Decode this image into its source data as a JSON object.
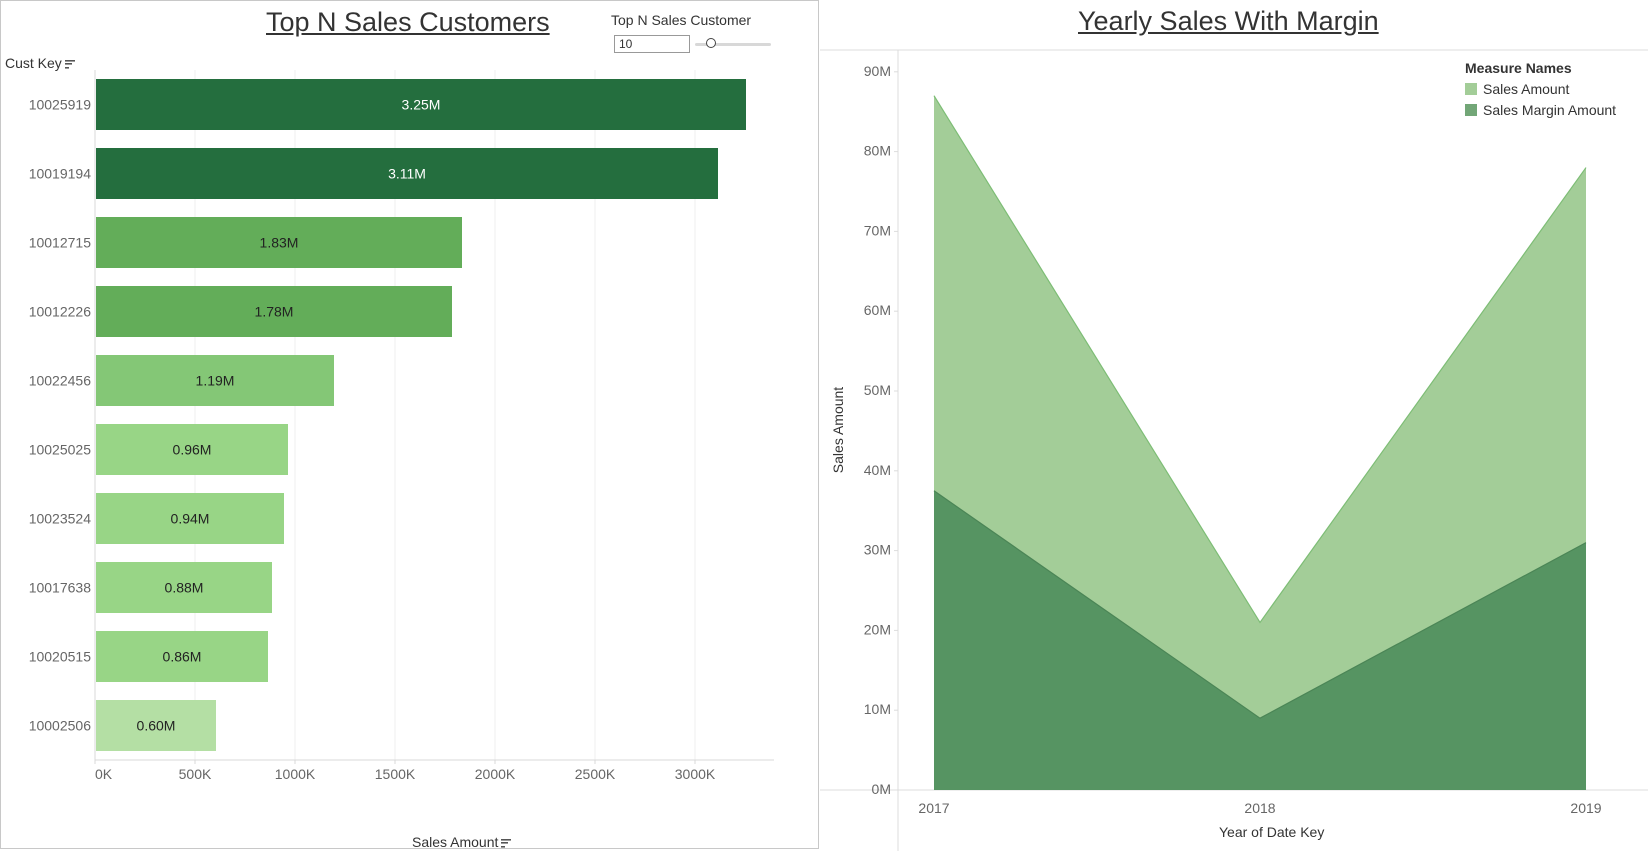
{
  "left_panel": {
    "title": "Top N Sales Customers",
    "parameter": {
      "label": "Top N Sales Customer",
      "value": "10"
    },
    "row_header": "Cust Key",
    "x_axis_title": "Sales Amount"
  },
  "right_panel": {
    "title": "Yearly Sales With Margin",
    "legend": {
      "title": "Measure Names",
      "items": [
        {
          "label": "Sales Amount",
          "color": "#a3cd98"
        },
        {
          "label": "Sales Margin Amount",
          "color": "#72a677"
        }
      ]
    },
    "y_axis_title": "Sales Amount",
    "x_axis_title": "Year of Date Key"
  },
  "chart_data": [
    {
      "type": "bar",
      "orientation": "horizontal",
      "title": "Top N Sales Customers",
      "xlabel": "Sales Amount",
      "ylabel": "Cust Key",
      "categories": [
        "10025919",
        "10019194",
        "10012715",
        "10012226",
        "10022456",
        "10025025",
        "10023524",
        "10017638",
        "10020515",
        "10002506"
      ],
      "values": [
        3250000,
        3110000,
        1830000,
        1780000,
        1190000,
        960000,
        940000,
        880000,
        860000,
        600000
      ],
      "data_labels": [
        "3.25M",
        "3.11M",
        "1.83M",
        "1.78M",
        "1.19M",
        "0.96M",
        "0.94M",
        "0.88M",
        "0.86M",
        "0.60M"
      ],
      "colors": [
        "#246e3e",
        "#246e3e",
        "#63ad59",
        "#63ad59",
        "#84c776",
        "#98d586",
        "#98d586",
        "#98d586",
        "#98d586",
        "#b4dfa4"
      ],
      "xlim": [
        0,
        3400000
      ],
      "x_ticks": [
        0,
        500000,
        1000000,
        1500000,
        2000000,
        2500000,
        3000000
      ],
      "x_tick_labels": [
        "0K",
        "500K",
        "1000K",
        "1500K",
        "2000K",
        "2500K",
        "3000K"
      ],
      "grid": "vertical"
    },
    {
      "type": "area",
      "title": "Yearly Sales With Margin",
      "xlabel": "Year of Date Key",
      "ylabel": "Sales Amount",
      "x": [
        "2017",
        "2018",
        "2019"
      ],
      "series": [
        {
          "name": "Sales Amount",
          "values": [
            87000000,
            21000000,
            78000000
          ],
          "color": "#a3cd98"
        },
        {
          "name": "Sales Margin Amount",
          "values": [
            37500000,
            9000000,
            31000000
          ],
          "color": "#569462"
        }
      ],
      "ylim": [
        0,
        91000000
      ],
      "y_ticks": [
        0,
        10000000,
        20000000,
        30000000,
        40000000,
        50000000,
        60000000,
        70000000,
        80000000,
        90000000
      ],
      "y_tick_labels": [
        "0M",
        "10M",
        "20M",
        "30M",
        "40M",
        "50M",
        "60M",
        "70M",
        "80M",
        "90M"
      ],
      "legend_position": "top-right",
      "grid": false
    }
  ]
}
